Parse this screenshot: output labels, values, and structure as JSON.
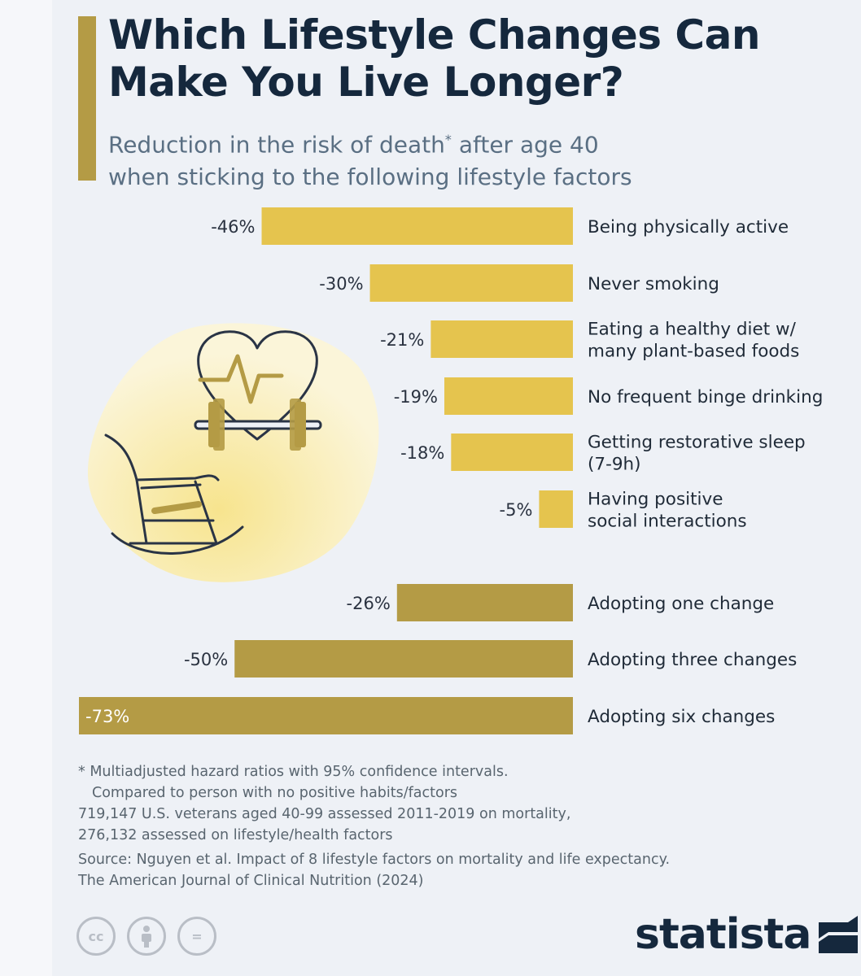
{
  "title": "Which Lifestyle Changes Can Make You Live Longer?",
  "subtitle": {
    "line1": "Reduction in the risk of death",
    "star": "*",
    "line1_end": " after age 40",
    "line2": "when sticking to the following lifestyle factors"
  },
  "colors": {
    "bar_factor": "#e5c44e",
    "bar_combo": "#b49b45",
    "title": "#15283d",
    "accent": "#b49b45",
    "illustration_blob": "#f8ecb0"
  },
  "chart_data": {
    "type": "bar",
    "orientation": "horizontal",
    "unit": "%",
    "xlim": [
      -73,
      0
    ],
    "series": [
      {
        "values": [
          -46,
          -30,
          -21,
          -19,
          -18,
          -5
        ],
        "labels": [
          "-46%",
          "-30%",
          "-21%",
          "-19%",
          "-18%",
          "-5%"
        ],
        "categories": [
          [
            "Being physically active"
          ],
          [
            "Never smoking"
          ],
          [
            "Eating a healthy diet w/",
            "many plant-based foods"
          ],
          [
            "No frequent binge drinking"
          ],
          [
            "Getting restorative sleep",
            "(7-9h)"
          ],
          [
            "Having positive",
            "social interactions"
          ]
        ]
      },
      {
        "values": [
          -26,
          -50,
          -73
        ],
        "labels": [
          "-26%",
          "-50%",
          "-73%"
        ],
        "categories": [
          [
            "Adopting one change"
          ],
          [
            "Adopting three changes"
          ],
          [
            "Adopting six changes"
          ]
        ]
      }
    ]
  },
  "notes": {
    "line1": "* Multiadjusted hazard ratios with 95% confidence intervals.",
    "line2": "Compared to person with no positive habits/factors",
    "line3": "719,147 U.S. veterans aged 40-99 assessed 2011-2019 on mortality,",
    "line4": "276,132 assessed on lifestyle/health factors",
    "source1": "Source: Nguyen et al. Impact of 8 lifestyle factors on mortality and life expectancy.",
    "source2": "The American Journal of Clinical Nutrition (2024)"
  },
  "license_icons": {
    "cc": "cc",
    "by": "person-icon",
    "nd": "="
  },
  "logo": "statista"
}
